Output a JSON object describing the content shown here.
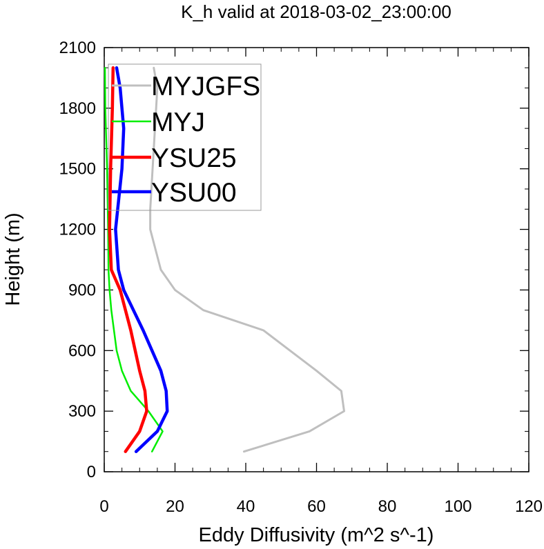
{
  "chart_data": {
    "type": "line",
    "title": "K_h valid at 2018-03-02_23:00:00",
    "xlabel": "Eddy Diffusivity (m^2 s^-1)",
    "ylabel": "Height (m)",
    "xlim": [
      0,
      120
    ],
    "ylim": [
      0,
      2100
    ],
    "x_ticks": [
      0,
      20,
      40,
      60,
      80,
      100,
      120
    ],
    "y_ticks": [
      0,
      300,
      600,
      900,
      1200,
      1500,
      1800,
      2100
    ],
    "x_ticks_labels": [
      "0",
      "20",
      "40",
      "60",
      "80",
      "100",
      "120"
    ],
    "y_ticks_labels": [
      "0",
      "300",
      "600",
      "900",
      "1200",
      "1500",
      "1800",
      "2100"
    ],
    "grid": false,
    "legend_position": "top-left",
    "series": [
      {
        "name": "MYJGFS",
        "color": "#bfbfbf",
        "points": [
          [
            39.5,
            100
          ],
          [
            58,
            200
          ],
          [
            67.8,
            300
          ],
          [
            67,
            400
          ],
          [
            60,
            500
          ],
          [
            45,
            700
          ],
          [
            28,
            800
          ],
          [
            20,
            900
          ],
          [
            16,
            1000
          ],
          [
            13,
            1200
          ],
          [
            13,
            1300
          ],
          [
            14,
            1600
          ],
          [
            15,
            1900
          ],
          [
            14,
            2000
          ]
        ]
      },
      {
        "name": "MYJ",
        "color": "#00ee00",
        "points": [
          [
            13.5,
            100
          ],
          [
            16.5,
            200
          ],
          [
            12.5,
            300
          ],
          [
            7.5,
            400
          ],
          [
            5,
            500
          ],
          [
            3.5,
            600
          ],
          [
            2,
            800
          ],
          [
            1.5,
            900
          ],
          [
            1.2,
            1000
          ],
          [
            1.1,
            1200
          ],
          [
            0.8,
            1500
          ],
          [
            0.3,
            1800
          ],
          [
            0.2,
            2000
          ]
        ]
      },
      {
        "name": "YSU25",
        "color": "#ff0000",
        "points": [
          [
            6,
            100
          ],
          [
            10,
            200
          ],
          [
            12,
            300
          ],
          [
            11.5,
            400
          ],
          [
            10,
            500
          ],
          [
            7.5,
            700
          ],
          [
            4.5,
            900
          ],
          [
            2,
            1000
          ],
          [
            1.5,
            1200
          ],
          [
            1.8,
            1500
          ],
          [
            2.3,
            1800
          ],
          [
            2.5,
            2000
          ]
        ]
      },
      {
        "name": "YSU00",
        "color": "#0000ff",
        "points": [
          [
            9,
            100
          ],
          [
            15,
            200
          ],
          [
            17.8,
            300
          ],
          [
            17.5,
            400
          ],
          [
            16,
            500
          ],
          [
            11,
            700
          ],
          [
            5.5,
            900
          ],
          [
            4,
            1000
          ],
          [
            3.2,
            1200
          ],
          [
            5,
            1500
          ],
          [
            5.5,
            1700
          ],
          [
            4.5,
            1900
          ],
          [
            3.5,
            2000
          ]
        ]
      }
    ]
  }
}
